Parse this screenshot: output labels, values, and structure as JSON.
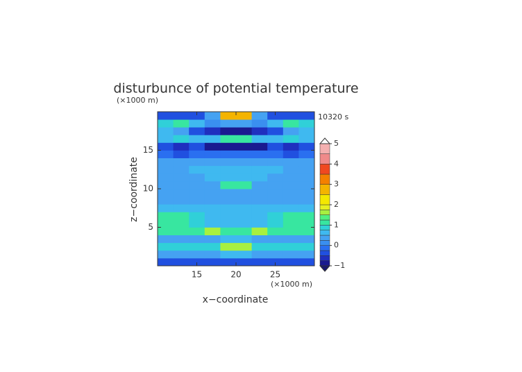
{
  "chart_data": {
    "type": "contour",
    "title": "disturbunce of potential temperature",
    "y_unit": "(×1000 m)",
    "x_unit": "(×1000 m)",
    "time_label": "10320 s",
    "x_label": "x−coordinate",
    "y_label": "z−coordinate",
    "xlim": [
      10,
      30
    ],
    "ylim": [
      0,
      20
    ],
    "xticks": [
      15,
      20,
      25
    ],
    "yticks": [
      5,
      10,
      15
    ],
    "x": [
      11,
      13,
      15,
      17,
      19,
      21,
      23,
      25,
      27,
      29
    ],
    "y": [
      0.5,
      1.5,
      2.5,
      3.5,
      4.5,
      5.5,
      6.5,
      7.5,
      8.5,
      9.5,
      10.5,
      11.5,
      12.5,
      13.5,
      14.5,
      15.5,
      16.5,
      17.5,
      18.5,
      19.5
    ],
    "z": [
      [
        -0.3,
        -0.3,
        -0.3,
        -0.3,
        -0.3,
        -0.3,
        -0.3,
        -0.3,
        -0.3,
        -0.3
      ],
      [
        0.3,
        0.3,
        0.3,
        0.4,
        0.5,
        0.5,
        0.4,
        0.3,
        0.3,
        0.3
      ],
      [
        0.8,
        0.8,
        0.8,
        0.9,
        1.6,
        1.6,
        0.9,
        0.8,
        0.8,
        0.8
      ],
      [
        0.4,
        0.4,
        0.4,
        0.4,
        0.6,
        0.6,
        0.4,
        0.4,
        0.4,
        0.4
      ],
      [
        1.1,
        1.1,
        1.1,
        1.6,
        1.0,
        1.0,
        1.6,
        1.1,
        1.1,
        1.1
      ],
      [
        1.1,
        1.1,
        0.9,
        0.6,
        0.6,
        0.6,
        0.6,
        0.9,
        1.1,
        1.1
      ],
      [
        1.0,
        1.1,
        0.8,
        0.5,
        0.5,
        0.5,
        0.5,
        0.8,
        1.1,
        1.0
      ],
      [
        0.6,
        0.6,
        0.6,
        0.5,
        0.5,
        0.5,
        0.5,
        0.6,
        0.6,
        0.6
      ],
      [
        0.3,
        0.3,
        0.3,
        0.3,
        0.3,
        0.3,
        0.3,
        0.3,
        0.3,
        0.3
      ],
      [
        0.3,
        0.3,
        0.3,
        0.3,
        0.4,
        0.4,
        0.3,
        0.3,
        0.3,
        0.3
      ],
      [
        0.3,
        0.3,
        0.3,
        0.4,
        1.1,
        1.1,
        0.4,
        0.3,
        0.3,
        0.3
      ],
      [
        0.3,
        0.3,
        0.4,
        0.6,
        0.6,
        0.6,
        0.6,
        0.4,
        0.3,
        0.3
      ],
      [
        0.3,
        0.4,
        0.6,
        0.6,
        0.6,
        0.6,
        0.6,
        0.6,
        0.4,
        0.3
      ],
      [
        0.3,
        0.3,
        0.3,
        0.3,
        0.3,
        0.3,
        0.3,
        0.3,
        0.3,
        0.3
      ],
      [
        -0.2,
        -0.4,
        -0.2,
        -0.1,
        -0.1,
        -0.1,
        -0.1,
        -0.2,
        -0.4,
        -0.2
      ],
      [
        -0.4,
        -0.6,
        -0.4,
        -0.8,
        -0.9,
        -0.9,
        -0.8,
        -0.4,
        -0.6,
        -0.4
      ],
      [
        0.6,
        0.9,
        0.5,
        0.6,
        1.2,
        1.2,
        0.6,
        0.5,
        0.9,
        0.6
      ],
      [
        0.5,
        0.3,
        -0.3,
        -0.7,
        -0.8,
        -0.8,
        -0.7,
        -0.3,
        0.3,
        0.5
      ],
      [
        0.8,
        1.2,
        0.6,
        0.2,
        0.3,
        0.3,
        0.2,
        0.6,
        1.2,
        0.8
      ],
      [
        -0.4,
        -0.3,
        -0.4,
        0.3,
        2.6,
        2.6,
        0.3,
        -0.4,
        -0.3,
        -0.4
      ]
    ],
    "levels": [
      -1,
      -0.75,
      -0.5,
      -0.25,
      0,
      0.25,
      0.5,
      0.75,
      1,
      1.25,
      1.5,
      1.75,
      2,
      2.5,
      3,
      3.5,
      4,
      4.5,
      5
    ],
    "colors": [
      "#1a1a90",
      "#1f2fbf",
      "#2050e0",
      "#2a6ff0",
      "#3a8ff0",
      "#45a2f2",
      "#3fb9f0",
      "#30d0d8",
      "#38e6a0",
      "#50f080",
      "#a8f040",
      "#e6f020",
      "#f4e800",
      "#f4b400",
      "#f48000",
      "#f04820",
      "#f08a8a",
      "#f4b0b0"
    ],
    "colorbar_ticks": [
      {
        "value": -1,
        "label": "−1"
      },
      0,
      1,
      2,
      3,
      4,
      5
    ]
  }
}
